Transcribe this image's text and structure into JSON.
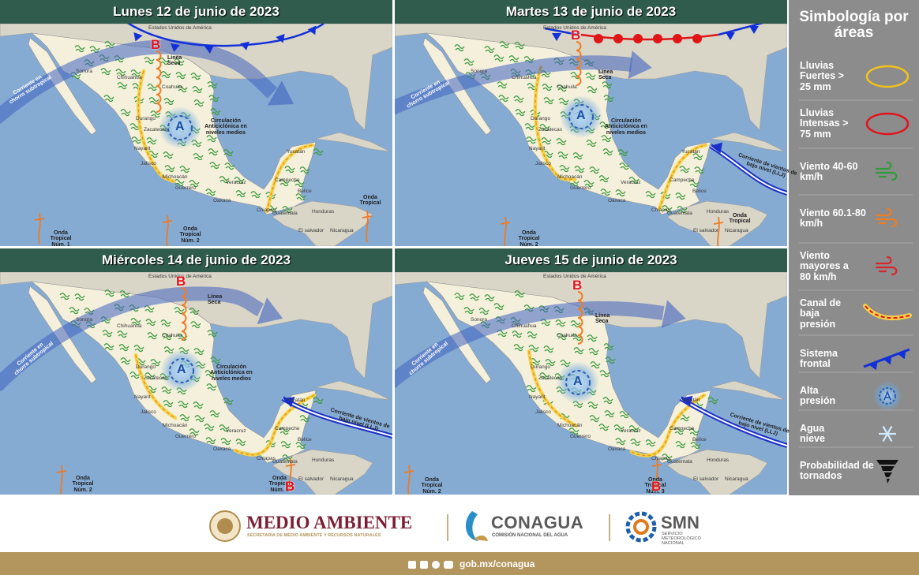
{
  "panels": [
    {
      "title": "Lunes 12 de junio de 2023",
      "dry_line": "Línea Seca",
      "anticyclone": "Circulación Anticiclónica en niveles medios",
      "jet": "Corriente en chorro subtropical",
      "tropical_waves": [
        "Onda Tropical Núm. 1",
        "Onda Tropical Núm. 2",
        "Onda Tropical"
      ],
      "lows": [
        "B"
      ],
      "high": "A"
    },
    {
      "title": "Martes 13 de junio de 2023",
      "dry_line": "Línea Seca",
      "anticyclone": "Circulación Anticiclónica en niveles medios",
      "jet": "Corriente en chorro subtropical",
      "llj": "Corriente de vientos de bajo nivel (LLJ)",
      "tropical_waves": [
        "Onda Tropical Núm. 2",
        "Onda Tropical"
      ],
      "lows": [
        "B"
      ],
      "high": "A"
    },
    {
      "title": "Miércoles 14 de junio de 2023",
      "dry_line": "Línea Seca",
      "anticyclone": "Circulación Anticiclónica en niveles medios",
      "jet": "Corriente en chorro subtropical",
      "llj": "Corriente de vientos de bajo nivel (LLJ)",
      "tropical_waves": [
        "Onda Tropical Núm. 2",
        "Onda Tropical Núm. 3"
      ],
      "lows": [
        "B",
        "B"
      ],
      "high": "A"
    },
    {
      "title": "Jueves 15 de junio de 2023",
      "dry_line": "Línea Seca",
      "jet": "Corriente en chorro subtropical",
      "llj": "Corriente de vientos de bajo nivel (LLJ)",
      "tropical_waves": [
        "Onda Tropical Núm. 2",
        "Onda Tropical Núm. 3"
      ],
      "lows": [
        "B",
        "B"
      ],
      "high": "A"
    }
  ],
  "geography": [
    "Estados Unidos de América",
    "Sonora",
    "Chihuahua",
    "Coahuila",
    "Durango",
    "Zacatecas",
    "Nayarit",
    "Jalisco",
    "Michoacán",
    "Guerrero",
    "Oaxaca",
    "Veracruz",
    "Campeche",
    "Yucatán",
    "Chiapas",
    "Belice",
    "Guatemala",
    "Honduras",
    "El salvador",
    "Nicaragua"
  ],
  "legend": {
    "title": "Simbología por áreas",
    "items": [
      "Lluvias Fuertes > 25 mm",
      "Lluvias Intensas > 75 mm",
      "Viento 40-60 km/h",
      "Viento 60.1-80 km/h",
      "Viento mayores a 80 km/h",
      "Canal de baja presión",
      "Sistema frontal",
      "Alta presión",
      "Agua nieve",
      "Probabilidad de tornados"
    ]
  },
  "footer": {
    "semarnat": "MEDIO AMBIENTE",
    "semarnat_subtitle": "SECRETARÍA DE MEDIO AMBIENTE Y RECURSOS NATURALES",
    "conagua": "CONAGUA",
    "conagua_subtitle": "COMISIÓN NACIONAL DEL AGUA",
    "smn": "SMN",
    "smn_subtitle": "SERVICIO METEOROLÓGICO NACIONAL",
    "url": "gob.mx/conagua"
  }
}
